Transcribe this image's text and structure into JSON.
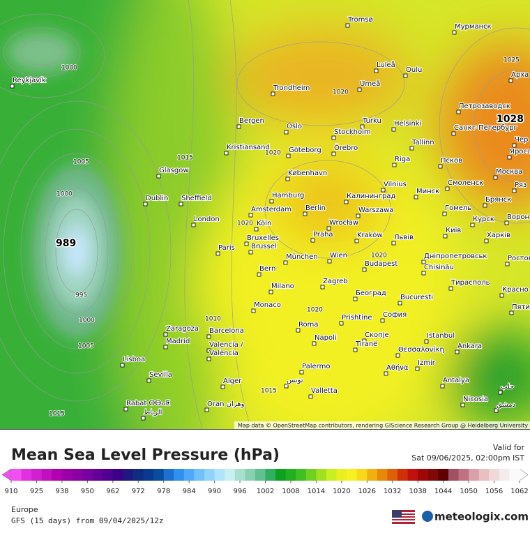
{
  "header": {
    "title": "Mean Sea Level Pressure (hPa)",
    "valid_label": "Valid for",
    "valid_time": "Sat 09/06/2025, 02:00pm IST"
  },
  "footer": {
    "region": "Europe",
    "model": "GFS (15 days) from  09/04/2025/12z",
    "brand": "meteologix.com",
    "attribution": "Map data © OpenStreetMap contributors, rendering GIScience Research Group @ Heidelberg University"
  },
  "centers": [
    "989",
    "1028"
  ],
  "isobars": [
    "1000",
    "1005",
    "1000",
    "995",
    "1000",
    "1005",
    "1015",
    "1015",
    "1020",
    "1020",
    "1020",
    "1020",
    "1020",
    "1010",
    "1015",
    "1025"
  ],
  "cities": [
    "Reykjavík",
    "Tromsø",
    "Мурманск",
    "Luleå",
    "Oulu",
    "Арха",
    "Trondheim",
    "Umeå",
    "Петрозаводск",
    "Bergen",
    "Oslo",
    "Turku",
    "Helsinki",
    "Санкт-Петербург",
    "Stockholm",
    "Чер",
    "Kristiansand",
    "Göteborg",
    "Örebro",
    "Tallinn",
    "Яросл",
    "Glasgow",
    "Riga",
    "Псков",
    "København",
    "Москва",
    "Dublin",
    "Sheffield",
    "Hamburg",
    "Vilnius",
    "Смоленск",
    "Минск",
    "Ряз",
    "Калининград",
    "Брянск",
    "Amsterdam",
    "Berlin",
    "Warszawa",
    "Гомель",
    "London",
    "Köln",
    "Wrocław",
    "Курск",
    "Ворон",
    "Bruxelles",
    "Brussel",
    "Praha",
    "Kraków",
    "Львів",
    "Київ",
    "Харків",
    "Paris",
    "München",
    "Wien",
    "Дніпропетровськ",
    "Ростов",
    "Chisinău",
    "Budapest",
    "Bern",
    "Тирасполь",
    "Milano",
    "Zagreb",
    "Београд",
    "Красно",
    "Monaco",
    "Bucuresti",
    "Пяти",
    "Prishtine",
    "София",
    "Roma",
    "Zaragoza",
    "Barcelona",
    "Napoli",
    "Скопје",
    "Istanbul",
    "Madrid",
    "Tiranë",
    "Θεσσαλονίκη",
    "Ankara",
    "Valencia /",
    "València",
    "Lisboa",
    "Izmir",
    "Αθήνα",
    "Palermo",
    "Sevilla",
    "Antalya",
    "حلب",
    "Alger",
    "Valletta",
    "تونس",
    "Nicosia",
    "Rabat ⵔⴱⴰⵟ",
    "الرباط",
    "Oran وهران",
    "دمشق"
  ],
  "colorbar": {
    "ticks": [
      910,
      925,
      938,
      950,
      962,
      972,
      978,
      984,
      990,
      996,
      1002,
      1008,
      1014,
      1020,
      1026,
      1032,
      1038,
      1044,
      1050,
      1056,
      1062
    ],
    "colors": [
      "#f050f0",
      "#e030e0",
      "#d020d0",
      "#c010c0",
      "#b000b0",
      "#9c00a8",
      "#8a00a0",
      "#7800a0",
      "#640098",
      "#500090",
      "#3c0088",
      "#1e1880",
      "#102c80",
      "#0a3a90",
      "#084ca0",
      "#1e70d0",
      "#3090f0",
      "#50a8f8",
      "#70c0fa",
      "#90d4fc",
      "#b0e4fc",
      "#c8f0f0",
      "#a8e0d0",
      "#88d0b0",
      "#60c090",
      "#30b060",
      "#10a020",
      "#20b020",
      "#40c020",
      "#70d020",
      "#a0e020",
      "#c8f020",
      "#e8f020",
      "#f8f020",
      "#f8d818",
      "#f0b010",
      "#e88808",
      "#e06008",
      "#d03008",
      "#c01010",
      "#a00808",
      "#800808",
      "#600000",
      "#a05060",
      "#c07080",
      "#d8a0a8",
      "#e8c0c0",
      "#f0d8d8",
      "#f4ecec",
      "#fafafa"
    ]
  }
}
